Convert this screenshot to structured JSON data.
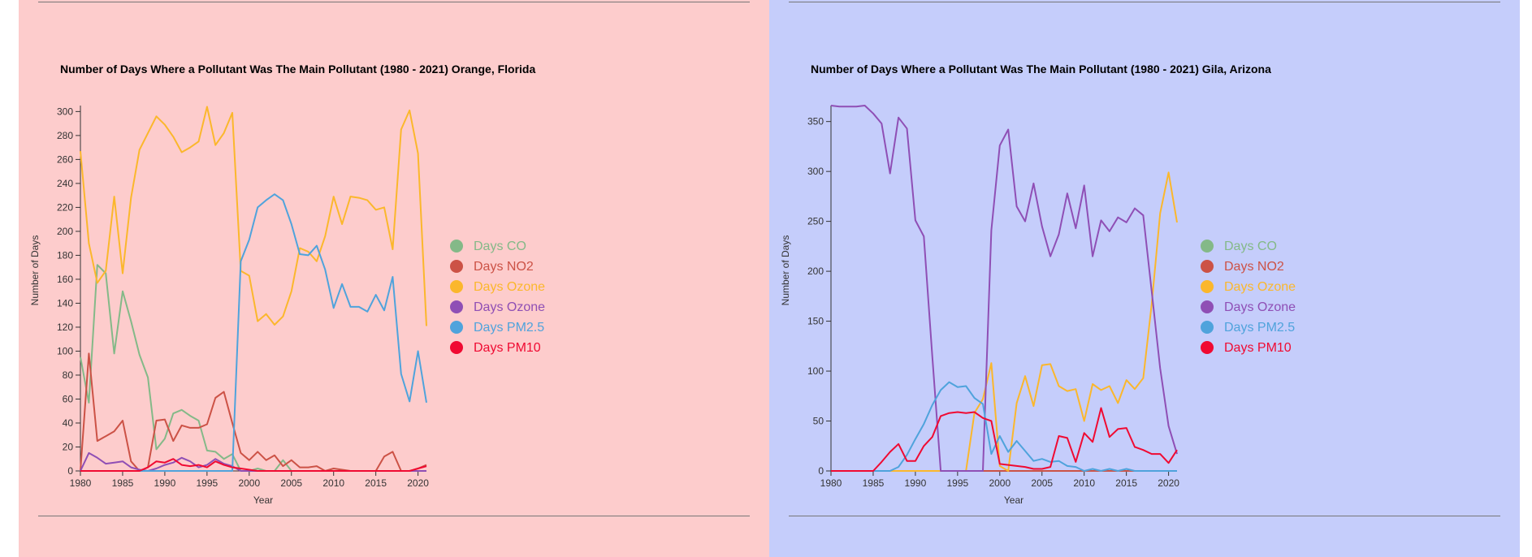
{
  "colors": {
    "left_background": "#fdcccc",
    "right_background": "#c5cdfb",
    "axis": "#333333",
    "rule": "#777777"
  },
  "legend": [
    {
      "label": "Days CO",
      "color": "#84b988"
    },
    {
      "label": "Days NO2",
      "color": "#cc5246"
    },
    {
      "label": "Days Ozone",
      "color": "#fbb72c"
    },
    {
      "label": "Days Ozone",
      "color": "#8f4fb5"
    },
    {
      "label": "Days PM2.5",
      "color": "#4fa3dc"
    },
    {
      "label": "Days PM10",
      "color": "#f00a32"
    }
  ],
  "chart_data": [
    {
      "type": "line",
      "title": "Number of Days Where a Pollutant Was The Main Pollutant (1980 - 2021) Orange, Florida",
      "xlabel": "Year",
      "ylabel": "Number of Days",
      "xlim": [
        1980,
        2021
      ],
      "ylim": [
        0,
        305
      ],
      "xticks": [
        1980,
        1985,
        1990,
        1995,
        2000,
        2005,
        2010,
        2015,
        2020
      ],
      "yticks": [
        0,
        20,
        40,
        60,
        80,
        100,
        120,
        140,
        160,
        180,
        200,
        220,
        240,
        260,
        280,
        300
      ],
      "legend_position": "right",
      "x": [
        1980,
        1981,
        1982,
        1983,
        1984,
        1985,
        1986,
        1987,
        1988,
        1989,
        1990,
        1991,
        1992,
        1993,
        1994,
        1995,
        1996,
        1997,
        1998,
        1999,
        2000,
        2001,
        2002,
        2003,
        2004,
        2005,
        2006,
        2007,
        2008,
        2009,
        2010,
        2011,
        2012,
        2013,
        2014,
        2015,
        2016,
        2017,
        2018,
        2019,
        2020,
        2021
      ],
      "series": [
        {
          "name": "Days CO",
          "color": "#84b988",
          "values": [
            95,
            57,
            172,
            165,
            98,
            150,
            125,
            97,
            78,
            18,
            27,
            48,
            51,
            46,
            42,
            17,
            16,
            10,
            14,
            0,
            0,
            2,
            0,
            0,
            9,
            0,
            0,
            0,
            0,
            0,
            0,
            0,
            0,
            0,
            0,
            0,
            0,
            0,
            0,
            0,
            0,
            0
          ]
        },
        {
          "name": "Days NO2",
          "color": "#cc5246",
          "values": [
            0,
            98,
            25,
            29,
            33,
            42,
            8,
            0,
            3,
            42,
            43,
            25,
            38,
            36,
            36,
            39,
            61,
            66,
            40,
            15,
            9,
            16,
            9,
            13,
            4,
            9,
            3,
            3,
            4,
            0,
            2,
            1,
            0,
            0,
            0,
            0,
            12,
            16,
            0,
            0,
            2,
            5
          ]
        },
        {
          "name": "Days Ozone",
          "color": "#fbb72c",
          "values": [
            267,
            190,
            157,
            167,
            229,
            165,
            228,
            268,
            282,
            296,
            289,
            279,
            266,
            270,
            275,
            304,
            272,
            282,
            299,
            167,
            163,
            125,
            131,
            122,
            129,
            150,
            186,
            183,
            175,
            196,
            229,
            206,
            229,
            228,
            226,
            218,
            220,
            185,
            285,
            301,
            265,
            121
          ]
        },
        {
          "name": "Days Ozone",
          "color": "#8f4fb5",
          "values": [
            0,
            15,
            11,
            6,
            7,
            8,
            3,
            1,
            0,
            2,
            5,
            7,
            11,
            8,
            3,
            5,
            10,
            6,
            4,
            0,
            0,
            0,
            0,
            0,
            0,
            0,
            0,
            0,
            0,
            0,
            0,
            0,
            0,
            0,
            0,
            0,
            0,
            0,
            0,
            0,
            0,
            0
          ]
        },
        {
          "name": "Days PM2.5",
          "color": "#4fa3dc",
          "values": [
            0,
            0,
            0,
            0,
            0,
            0,
            0,
            0,
            0,
            0,
            0,
            0,
            0,
            0,
            0,
            0,
            0,
            0,
            0,
            175,
            193,
            220,
            226,
            231,
            226,
            206,
            181,
            180,
            188,
            168,
            136,
            156,
            137,
            137,
            133,
            147,
            134,
            162,
            81,
            58,
            100,
            57
          ]
        },
        {
          "name": "Days PM10",
          "color": "#f00a32",
          "values": [
            0,
            0,
            0,
            0,
            0,
            0,
            0,
            0,
            3,
            8,
            7,
            10,
            5,
            4,
            5,
            3,
            8,
            5,
            3,
            2,
            1,
            0,
            0,
            0,
            0,
            0,
            0,
            0,
            0,
            0,
            0,
            0,
            0,
            0,
            0,
            0,
            0,
            0,
            0,
            0,
            2,
            4
          ]
        }
      ]
    },
    {
      "type": "line",
      "title": "Number of Days Where a Pollutant Was The Main Pollutant (1980 - 2021) Gila, Arizona",
      "xlabel": "Year",
      "ylabel": "Number of Days",
      "xlim": [
        1980,
        2021
      ],
      "ylim": [
        0,
        366
      ],
      "xticks": [
        1980,
        1985,
        1990,
        1995,
        2000,
        2005,
        2010,
        2015,
        2020
      ],
      "yticks": [
        0,
        50,
        100,
        150,
        200,
        250,
        300,
        350
      ],
      "legend_position": "right",
      "x": [
        1980,
        1981,
        1982,
        1983,
        1984,
        1985,
        1986,
        1987,
        1988,
        1989,
        1990,
        1991,
        1992,
        1993,
        1994,
        1995,
        1996,
        1997,
        1998,
        1999,
        2000,
        2001,
        2002,
        2003,
        2004,
        2005,
        2006,
        2007,
        2008,
        2009,
        2010,
        2011,
        2012,
        2013,
        2014,
        2015,
        2016,
        2017,
        2018,
        2019,
        2020,
        2021
      ],
      "series": [
        {
          "name": "Days CO",
          "color": "#84b988",
          "values": [
            0,
            0,
            0,
            0,
            0,
            0,
            0,
            0,
            0,
            0,
            0,
            0,
            0,
            0,
            0,
            0,
            0,
            0,
            0,
            0,
            0,
            0,
            0,
            0,
            0,
            0,
            0,
            0,
            0,
            0,
            0,
            0,
            0,
            0,
            0,
            0,
            0,
            0,
            0,
            0,
            0,
            0
          ]
        },
        {
          "name": "Days NO2",
          "color": "#cc5246",
          "values": [
            0,
            0,
            0,
            0,
            0,
            0,
            0,
            0,
            0,
            0,
            0,
            0,
            0,
            0,
            0,
            0,
            0,
            0,
            0,
            0,
            0,
            0,
            0,
            0,
            0,
            0,
            0,
            0,
            0,
            0,
            0,
            0,
            0,
            0,
            0,
            0,
            0,
            0,
            0,
            0,
            0,
            0
          ]
        },
        {
          "name": "Days Ozone",
          "color": "#fbb72c",
          "values": [
            0,
            0,
            0,
            0,
            0,
            0,
            0,
            0,
            0,
            0,
            0,
            0,
            0,
            0,
            0,
            0,
            0,
            58,
            72,
            108,
            5,
            0,
            68,
            95,
            65,
            106,
            107,
            85,
            80,
            82,
            50,
            87,
            81,
            85,
            68,
            91,
            82,
            93,
            167,
            258,
            299,
            249
          ]
        },
        {
          "name": "Days Ozone",
          "color": "#8f4fb5",
          "values": [
            366,
            365,
            365,
            365,
            366,
            358,
            348,
            298,
            354,
            343,
            251,
            235,
            115,
            0,
            0,
            0,
            0,
            0,
            0,
            241,
            326,
            342,
            265,
            250,
            288,
            245,
            215,
            237,
            278,
            243,
            286,
            215,
            251,
            240,
            254,
            249,
            263,
            256,
            180,
            103,
            45,
            17
          ]
        },
        {
          "name": "Days PM2.5",
          "color": "#4fa3dc",
          "values": [
            0,
            0,
            0,
            0,
            0,
            0,
            0,
            0,
            4,
            16,
            32,
            47,
            66,
            81,
            89,
            84,
            85,
            73,
            67,
            17,
            35,
            19,
            30,
            20,
            10,
            12,
            9,
            10,
            5,
            4,
            0,
            2,
            0,
            2,
            0,
            2,
            0,
            0,
            0,
            0,
            0,
            0
          ]
        },
        {
          "name": "Days PM10",
          "color": "#f00a32",
          "values": [
            0,
            0,
            0,
            0,
            0,
            0,
            9,
            19,
            27,
            10,
            10,
            25,
            34,
            55,
            58,
            59,
            58,
            59,
            53,
            50,
            7,
            6,
            5,
            4,
            2,
            2,
            4,
            35,
            33,
            9,
            38,
            29,
            63,
            34,
            42,
            43,
            24,
            21,
            17,
            17,
            8,
            21
          ]
        }
      ]
    }
  ]
}
